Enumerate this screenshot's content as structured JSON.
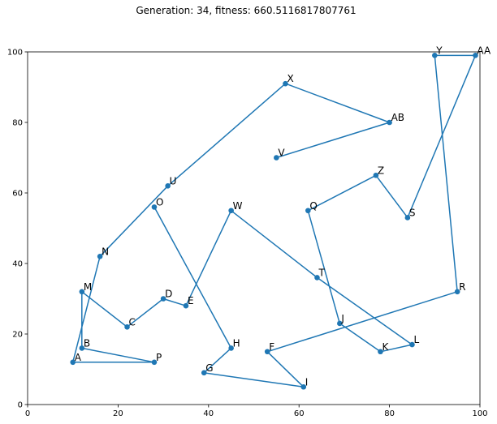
{
  "chart_data": {
    "type": "line",
    "title": "Generation: 34, fitness: 660.5116817807761",
    "xlabel": "",
    "ylabel": "",
    "xlim": [
      0,
      100
    ],
    "ylim": [
      0,
      100
    ],
    "xticks": [
      0,
      20,
      40,
      60,
      80,
      100
    ],
    "yticks": [
      0,
      20,
      40,
      60,
      80,
      100
    ],
    "grid": false,
    "series_color": "#1f77b4",
    "points": [
      {
        "label": "A",
        "x": 10,
        "y": 12
      },
      {
        "label": "B",
        "x": 12,
        "y": 16
      },
      {
        "label": "C",
        "x": 22,
        "y": 22
      },
      {
        "label": "D",
        "x": 30,
        "y": 30
      },
      {
        "label": "E",
        "x": 35,
        "y": 28
      },
      {
        "label": "F",
        "x": 53,
        "y": 15
      },
      {
        "label": "G",
        "x": 39,
        "y": 9
      },
      {
        "label": "H",
        "x": 45,
        "y": 16
      },
      {
        "label": "I",
        "x": 61,
        "y": 5
      },
      {
        "label": "J",
        "x": 69,
        "y": 23
      },
      {
        "label": "K",
        "x": 78,
        "y": 15
      },
      {
        "label": "L",
        "x": 85,
        "y": 17
      },
      {
        "label": "M",
        "x": 12,
        "y": 32
      },
      {
        "label": "N",
        "x": 16,
        "y": 42
      },
      {
        "label": "O",
        "x": 28,
        "y": 56
      },
      {
        "label": "P",
        "x": 28,
        "y": 12
      },
      {
        "label": "Q",
        "x": 62,
        "y": 55
      },
      {
        "label": "R",
        "x": 95,
        "y": 32
      },
      {
        "label": "S",
        "x": 84,
        "y": 53
      },
      {
        "label": "T",
        "x": 64,
        "y": 36
      },
      {
        "label": "U",
        "x": 31,
        "y": 62
      },
      {
        "label": "V",
        "x": 55,
        "y": 70
      },
      {
        "label": "W",
        "x": 45,
        "y": 55
      },
      {
        "label": "X",
        "x": 57,
        "y": 91
      },
      {
        "label": "Y",
        "x": 90,
        "y": 99
      },
      {
        "label": "Z",
        "x": 77,
        "y": 65
      },
      {
        "label": "AA",
        "x": 99,
        "y": 99
      },
      {
        "label": "AB",
        "x": 80,
        "y": 80
      }
    ],
    "route": [
      "V",
      "AB",
      "X",
      "U",
      "N",
      "A",
      "P",
      "B",
      "M",
      "C",
      "D",
      "E",
      "W",
      "T",
      "L",
      "K",
      "J",
      "Q",
      "Z",
      "S",
      "AA",
      "Y",
      "R",
      "F",
      "I",
      "G",
      "H",
      "O"
    ]
  }
}
